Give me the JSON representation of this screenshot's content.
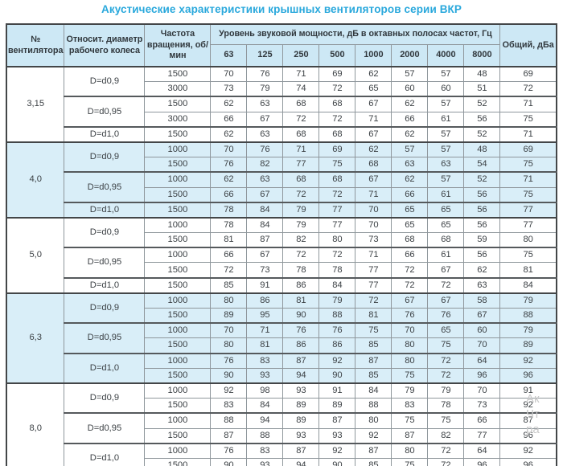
{
  "title": "Акустические характеристики крышных вентиляторов серии ВКР",
  "table": {
    "col_fan": "№ вентилятора",
    "col_diameter": "Относит. диаметр рабочего колеса",
    "col_speed": "Частота вращения, об/мин",
    "col_spl_group": "Уровень звуковой мощности, дБ в октавных полосах частот, Гц",
    "col_total": "Общий, дБа",
    "freq_bands": [
      "63",
      "125",
      "250",
      "500",
      "1000",
      "2000",
      "4000",
      "8000"
    ],
    "groups": [
      {
        "fan": "3,15",
        "subgroups": [
          {
            "diameter": "D=d0,9",
            "rows": [
              {
                "speed": "1500",
                "values": [
                  70,
                  76,
                  71,
                  69,
                  62,
                  57,
                  57,
                  48
                ],
                "total": 69
              },
              {
                "speed": "3000",
                "values": [
                  73,
                  79,
                  74,
                  72,
                  65,
                  60,
                  60,
                  51
                ],
                "total": 72
              }
            ]
          },
          {
            "diameter": "D=d0,95",
            "rows": [
              {
                "speed": "1500",
                "values": [
                  62,
                  63,
                  68,
                  68,
                  67,
                  62,
                  57,
                  52
                ],
                "total": 71
              },
              {
                "speed": "3000",
                "values": [
                  66,
                  67,
                  72,
                  72,
                  71,
                  66,
                  61,
                  56
                ],
                "total": 75
              }
            ]
          },
          {
            "diameter": "D=d1,0",
            "rows": [
              {
                "speed": "1500",
                "values": [
                  62,
                  63,
                  68,
                  68,
                  67,
                  62,
                  57,
                  52
                ],
                "total": 71
              }
            ]
          }
        ]
      },
      {
        "fan": "4,0",
        "subgroups": [
          {
            "diameter": "D=d0,9",
            "rows": [
              {
                "speed": "1000",
                "values": [
                  70,
                  76,
                  71,
                  69,
                  62,
                  57,
                  57,
                  48
                ],
                "total": 69
              },
              {
                "speed": "1500",
                "values": [
                  76,
                  82,
                  77,
                  75,
                  68,
                  63,
                  63,
                  54
                ],
                "total": 75
              }
            ]
          },
          {
            "diameter": "D=d0,95",
            "rows": [
              {
                "speed": "1000",
                "values": [
                  62,
                  63,
                  68,
                  68,
                  67,
                  62,
                  57,
                  52
                ],
                "total": 71
              },
              {
                "speed": "1500",
                "values": [
                  66,
                  67,
                  72,
                  72,
                  71,
                  66,
                  61,
                  56
                ],
                "total": 75
              }
            ]
          },
          {
            "diameter": "D=d1,0",
            "rows": [
              {
                "speed": "1500",
                "values": [
                  78,
                  84,
                  79,
                  77,
                  70,
                  65,
                  65,
                  56
                ],
                "total": 77
              }
            ]
          }
        ]
      },
      {
        "fan": "5,0",
        "subgroups": [
          {
            "diameter": "D=d0,9",
            "rows": [
              {
                "speed": "1000",
                "values": [
                  78,
                  84,
                  79,
                  77,
                  70,
                  65,
                  65,
                  56
                ],
                "total": 77
              },
              {
                "speed": "1500",
                "values": [
                  81,
                  87,
                  82,
                  80,
                  73,
                  68,
                  68,
                  59
                ],
                "total": 80
              }
            ]
          },
          {
            "diameter": "D=d0,95",
            "rows": [
              {
                "speed": "1000",
                "values": [
                  66,
                  67,
                  72,
                  72,
                  71,
                  66,
                  61,
                  56
                ],
                "total": 75
              },
              {
                "speed": "1500",
                "values": [
                  72,
                  73,
                  78,
                  78,
                  77,
                  72,
                  67,
                  62
                ],
                "total": 81
              }
            ]
          },
          {
            "diameter": "D=d1,0",
            "rows": [
              {
                "speed": "1500",
                "values": [
                  85,
                  91,
                  86,
                  84,
                  77,
                  72,
                  72,
                  63
                ],
                "total": 84
              }
            ]
          }
        ]
      },
      {
        "fan": "6,3",
        "subgroups": [
          {
            "diameter": "D=d0,9",
            "rows": [
              {
                "speed": "1000",
                "values": [
                  80,
                  86,
                  81,
                  79,
                  72,
                  67,
                  67,
                  58
                ],
                "total": 79
              },
              {
                "speed": "1500",
                "values": [
                  89,
                  95,
                  90,
                  88,
                  81,
                  76,
                  76,
                  67
                ],
                "total": 88
              }
            ]
          },
          {
            "diameter": "D=d0,95",
            "rows": [
              {
                "speed": "1000",
                "values": [
                  70,
                  71,
                  76,
                  76,
                  75,
                  70,
                  65,
                  60
                ],
                "total": 79
              },
              {
                "speed": "1500",
                "values": [
                  80,
                  81,
                  86,
                  86,
                  85,
                  80,
                  75,
                  70
                ],
                "total": 89
              }
            ]
          },
          {
            "diameter": "D=d1,0",
            "rows": [
              {
                "speed": "1000",
                "values": [
                  76,
                  83,
                  87,
                  92,
                  87,
                  80,
                  72,
                  64
                ],
                "total": 92
              },
              {
                "speed": "1500",
                "values": [
                  90,
                  93,
                  94,
                  90,
                  85,
                  75,
                  72,
                  96
                ],
                "total": 96
              }
            ]
          }
        ]
      },
      {
        "fan": "8,0",
        "subgroups": [
          {
            "diameter": "D=d0,9",
            "rows": [
              {
                "speed": "1000",
                "values": [
                  92,
                  98,
                  93,
                  91,
                  84,
                  79,
                  79,
                  70
                ],
                "total": 91
              },
              {
                "speed": "1500",
                "values": [
                  83,
                  84,
                  89,
                  89,
                  88,
                  83,
                  78,
                  73
                ],
                "total": 92
              }
            ]
          },
          {
            "diameter": "D=d0,95",
            "rows": [
              {
                "speed": "1000",
                "values": [
                  88,
                  94,
                  89,
                  87,
                  80,
                  75,
                  75,
                  66
                ],
                "total": 87
              },
              {
                "speed": "1500",
                "values": [
                  87,
                  88,
                  93,
                  93,
                  92,
                  87,
                  82,
                  77
                ],
                "total": 96
              }
            ]
          },
          {
            "diameter": "D=d1,0",
            "rows": [
              {
                "speed": "1000",
                "values": [
                  76,
                  83,
                  87,
                  92,
                  87,
                  80,
                  72,
                  64
                ],
                "total": 92
              },
              {
                "speed": "1500",
                "values": [
                  90,
                  93,
                  94,
                  90,
                  85,
                  75,
                  72,
                  96
                ],
                "total": 96
              }
            ]
          }
        ]
      }
    ]
  },
  "watermark": {
    "line1": "Ак",
    "line2": "Чт",
    "line3": "ра"
  },
  "colors": {
    "accent": "#29a8dc",
    "header_bg": "#cde8f5",
    "band_bg": "#d9eef8",
    "border_dark": "#434648",
    "border_light": "#8f979c"
  }
}
